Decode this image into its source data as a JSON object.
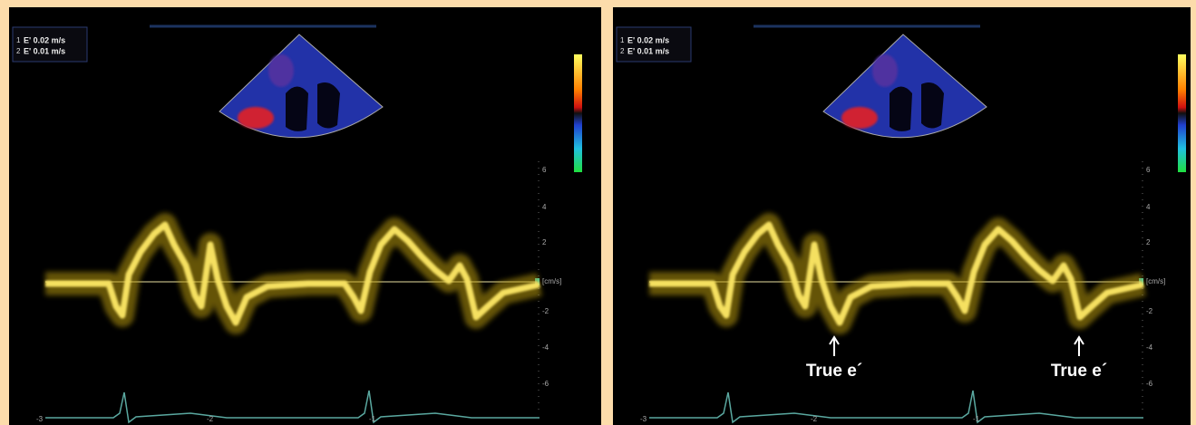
{
  "panels": [
    {
      "legend_index": [
        "1",
        "2"
      ],
      "legend": [
        "E' 0.02 m/s",
        "E' 0.01 m/s"
      ],
      "scale_labels": [
        "6",
        "4",
        "2",
        "[cm/s]",
        "-2",
        "-4",
        "-6"
      ],
      "time_labels": [
        "-3",
        "-2",
        "-1"
      ],
      "annotations": []
    },
    {
      "legend_index": [
        "1",
        "2"
      ],
      "legend": [
        "E' 0.02 m/s",
        "E' 0.01 m/s"
      ],
      "scale_labels": [
        "6",
        "4",
        "2",
        "[cm/s]",
        "-2",
        "-4",
        "-6"
      ],
      "time_labels": [
        "-3",
        "-2",
        "-1"
      ],
      "annotations": [
        "True e´",
        "True e´"
      ]
    }
  ]
}
